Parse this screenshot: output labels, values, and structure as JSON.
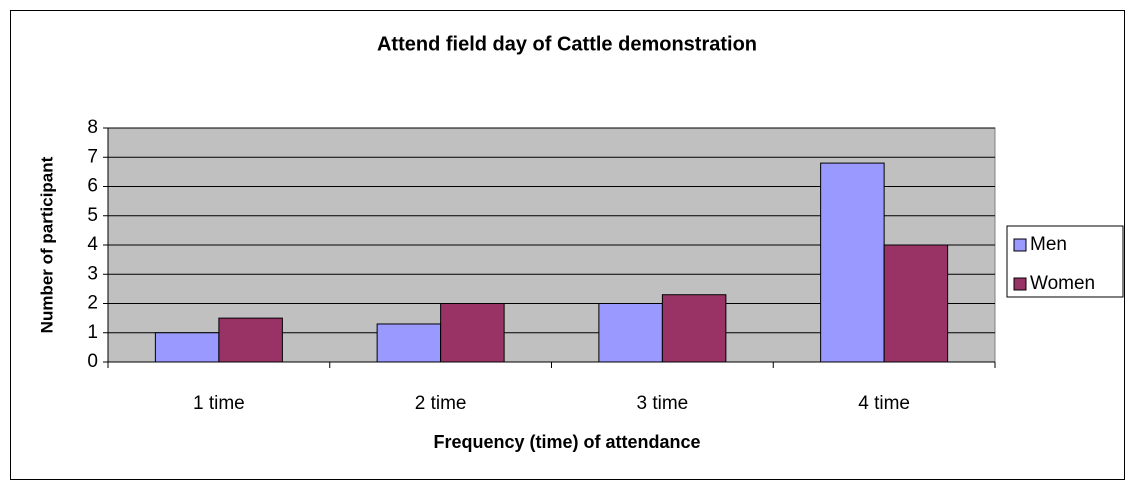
{
  "chart_data": {
    "type": "bar",
    "title": "Attend field day of Cattle demonstration",
    "x_label": "Frequency (time) of attendance",
    "y_label": "Number of participant",
    "annotation": "`",
    "categories": [
      "1 time",
      "2 time",
      "3 time",
      "4 time"
    ],
    "series": [
      {
        "name": "Men",
        "color": "#9999ff",
        "values": [
          1,
          1.3,
          2,
          6.8
        ]
      },
      {
        "name": "Women",
        "color": "#993366",
        "values": [
          1.5,
          2,
          2.3,
          4
        ]
      }
    ],
    "ylim": [
      0,
      8
    ],
    "yticks": [
      0,
      1,
      2,
      3,
      4,
      5,
      6,
      7,
      8
    ],
    "grid": true,
    "legend": "right"
  }
}
